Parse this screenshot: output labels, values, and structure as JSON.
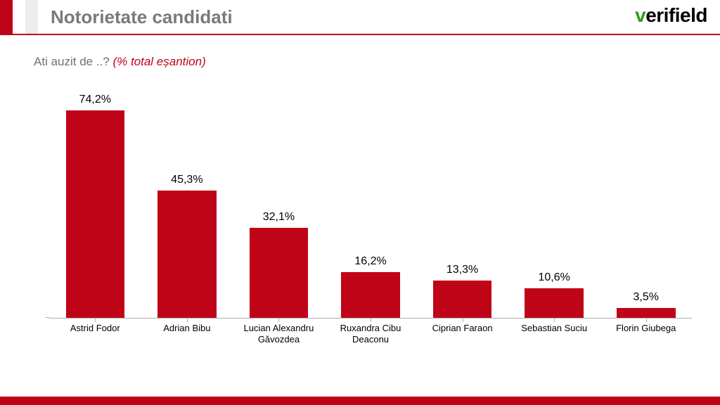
{
  "colors": {
    "accent": "#c00418",
    "title": "#7a7a7a",
    "greybar": "#ececec",
    "logo_v": "#2e9b1a",
    "logo_rest": "#000000",
    "subtitle_main": "#6f6f6f",
    "background": "#ffffff"
  },
  "header": {
    "title": "Notorietate candidati",
    "logo_prefix": "v",
    "logo_rest": "erifield"
  },
  "subtitle": {
    "main": "Ati auzit de ..? ",
    "note": "(% total eșantion)"
  },
  "chart": {
    "type": "bar",
    "ylim": [
      0,
      80
    ],
    "bar_color": "#c00418",
    "bar_width_pct": 64,
    "label_fontsize": 16,
    "xlabel_fontsize": 13,
    "categories": [
      "Astrid Fodor",
      "Adrian Bibu",
      "Lucian Alexandru Găvozdea",
      "Ruxandra Cibu Deaconu",
      "Ciprian Faraon",
      "Sebastian Suciu",
      "Florin Giubega"
    ],
    "values": [
      74.2,
      45.3,
      32.1,
      16.2,
      13.3,
      10.6,
      3.5
    ],
    "value_labels": [
      "74,2%",
      "45,3%",
      "32,1%",
      "16,2%",
      "13,3%",
      "10,6%",
      "3,5%"
    ]
  }
}
